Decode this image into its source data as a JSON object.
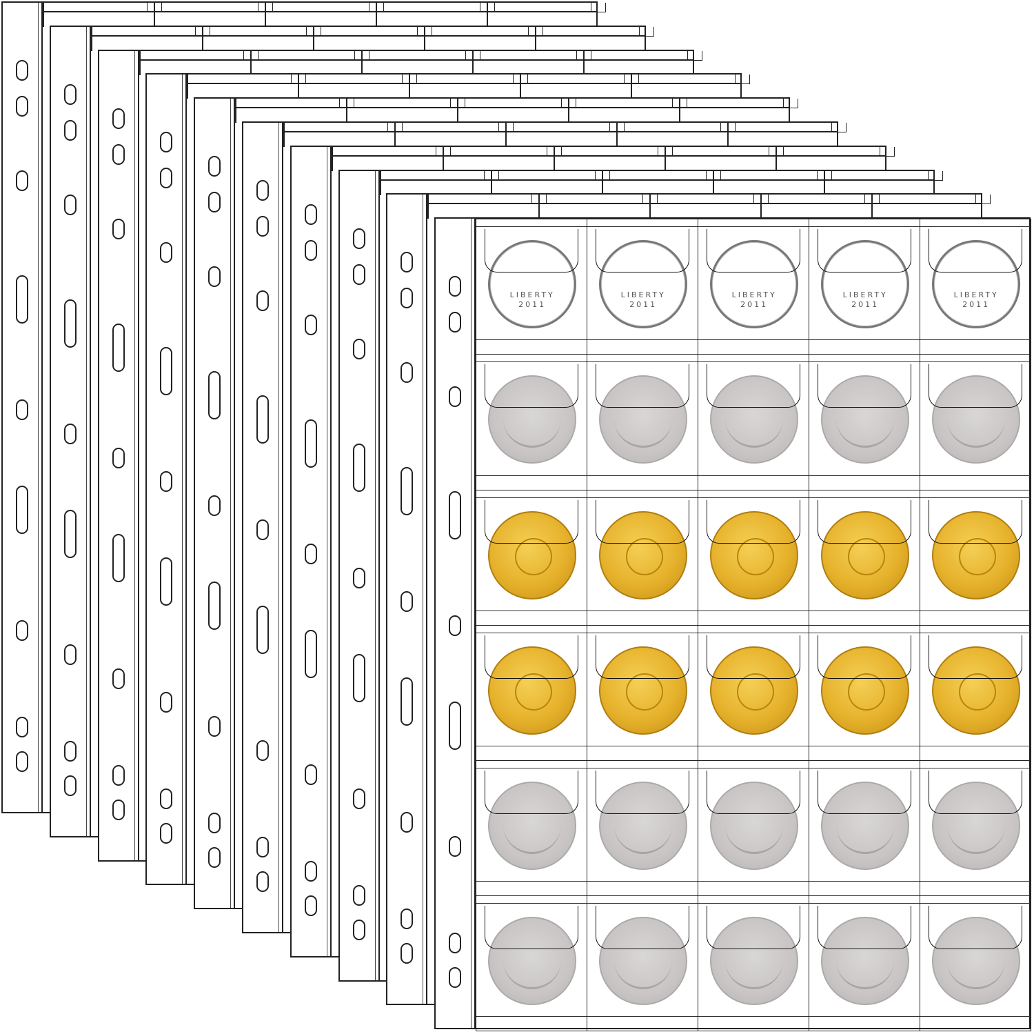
{
  "product": {
    "page_count": 10,
    "columns": 5,
    "rows": 6,
    "coin_rows": [
      "outline",
      "silver",
      "gold",
      "gold",
      "silver",
      "silver"
    ],
    "coin_lettering": "LIBERTY 2011",
    "colors": {
      "outline": "#222222",
      "silver_coin": "#c9c5c5",
      "gold_coin": "#e6b22c",
      "background": "#ffffff"
    }
  }
}
